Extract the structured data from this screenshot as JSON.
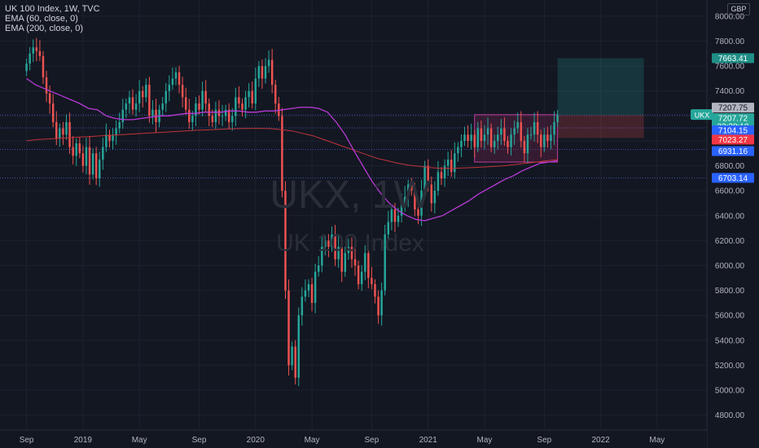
{
  "header": {
    "symbol_line": "UK 100 Index, 1W, TVC",
    "indicators": [
      "EMA (60, close, 0)",
      "EMA (200, close, 0)"
    ],
    "currency": "GBP"
  },
  "watermark": {
    "ticker": "UKX, 1W",
    "name": "UK 100 Index"
  },
  "colors": {
    "background": "#131722",
    "up": "#26a69a",
    "down": "#ef5350",
    "ema60": "#b83ad6",
    "ema200": "#c0343a",
    "grid": "#1e222d",
    "text": "#b2b5be"
  },
  "chart_data": {
    "type": "candlestick",
    "timeframe": "1W",
    "y_axis_ticks": [
      4800,
      5000,
      5200,
      5400,
      5600,
      5800,
      6000,
      6200,
      6400,
      6600,
      6800,
      7000,
      7200,
      7400,
      7600,
      7800,
      8000
    ],
    "y_axis_labels": [
      "4800.00",
      "5000.00",
      "5200.00",
      "5400.00",
      "5600.00",
      "5800.00",
      "6000.00",
      "6200.00",
      "6400.00",
      "6600.00",
      "6800.00",
      "7000.00",
      "7200.00",
      "7400.00",
      "7600.00",
      "7800.00",
      "8000.00"
    ],
    "ylim": [
      4680,
      8130
    ],
    "x_axis_labels": [
      "Sep",
      "2019",
      "May",
      "Sep",
      "2020",
      "May",
      "Sep",
      "2021",
      "May",
      "Sep",
      "2022",
      "May"
    ],
    "x_axis_positions": [
      0,
      17,
      34,
      52,
      69,
      86,
      104,
      121,
      138,
      156,
      173,
      190
    ],
    "xlim": [
      -8,
      205
    ],
    "price_labels": [
      {
        "value": "7663.41",
        "price": 7663.41,
        "bg": "#1f8e86",
        "fg": "#ffffff"
      },
      {
        "value": "7207.75",
        "price": 7207.75,
        "bg": "#b2b5be",
        "fg": "#131722"
      },
      {
        "value": "7207.72",
        "price": 7207.72,
        "bg": "#26a69a",
        "fg": "#ffffff",
        "sub": "22:20:10"
      },
      {
        "value": "7104.15",
        "price": 7104.15,
        "bg": "#2962ff",
        "fg": "#ffffff"
      },
      {
        "value": "7023.27",
        "price": 7023.27,
        "bg": "#f23645",
        "fg": "#ffffff"
      },
      {
        "value": "6931.16",
        "price": 6931.16,
        "bg": "#2962ff",
        "fg": "#ffffff"
      },
      {
        "value": "6703.14",
        "price": 6703.14,
        "bg": "#2962ff",
        "fg": "#ffffff"
      }
    ],
    "symbol_tag": "UKX",
    "horizontal_lines": [
      7207.75,
      7104.15,
      6931.16,
      6703.14
    ],
    "range_box": {
      "x0": 135,
      "x1": 160,
      "p0": 7210,
      "p1": 6830
    },
    "position_tool": {
      "x0": 160,
      "x1": 186,
      "entry": 7207.72,
      "target": 7663.41,
      "stop": 7023.27
    },
    "closes": [
      7620,
      7700,
      7750,
      7720,
      7680,
      7510,
      7380,
      7300,
      7150,
      7020,
      7100,
      7050,
      7150,
      6950,
      6880,
      6980,
      6900,
      6800,
      6950,
      6730,
      6900,
      6700,
      6850,
      6950,
      7050,
      7000,
      7050,
      7100,
      7150,
      7250,
      7300,
      7350,
      7250,
      7300,
      7400,
      7350,
      7450,
      7200,
      7250,
      7150,
      7250,
      7300,
      7400,
      7450,
      7500,
      7550,
      7450,
      7350,
      7250,
      7150,
      7200,
      7300,
      7250,
      7400,
      7300,
      7200,
      7150,
      7250,
      7200,
      7200,
      7250,
      7150,
      7200,
      7350,
      7300,
      7250,
      7350,
      7400,
      7300,
      7500,
      7600,
      7500,
      7600,
      7650,
      7450,
      7300,
      7200,
      6600,
      5800,
      5200,
      5350,
      5100,
      5600,
      5750,
      5800,
      5850,
      5700,
      5950,
      6000,
      6150,
      6200,
      6150,
      6250,
      6050,
      6150,
      5950,
      6100,
      6150,
      6050,
      6000,
      5850,
      5950,
      6100,
      5900,
      5850,
      5750,
      5600,
      5800,
      6250,
      6350,
      6450,
      6350,
      6400,
      6500,
      6550,
      6650,
      6600,
      6450,
      6400,
      6600,
      6800,
      6650,
      6500,
      6600,
      6750,
      6700,
      6800,
      6850,
      6750,
      6900,
      6950,
      7000,
      7050,
      7000,
      7050,
      6950,
      7100,
      7000,
      7050,
      7100,
      6950,
      7000,
      7050,
      7100,
      7000,
      6950,
      7050,
      7100,
      7150,
      7000,
      6900,
      7050,
      7050,
      7150,
      7050,
      6950,
      7050,
      7000,
      7050,
      7150,
      7207.72
    ],
    "ema60": [
      7500,
      7450,
      7420,
      7390,
      7360,
      7330,
      7300,
      7260,
      7250,
      7200,
      7180,
      7170,
      7170,
      7180,
      7190,
      7200,
      7200,
      7210,
      7220,
      7220,
      7230,
      7230,
      7230,
      7240,
      7240,
      7230,
      7230,
      7240,
      7240,
      7250,
      7260,
      7270,
      7270,
      7260,
      7230,
      7150,
      7050,
      6920,
      6800,
      6680,
      6580,
      6500,
      6440,
      6400,
      6370,
      6360,
      6380,
      6400,
      6440,
      6480,
      6520,
      6570,
      6610,
      6650,
      6690,
      6720,
      6760,
      6790,
      6820,
      6830,
      6840
    ],
    "ema200": [
      7000,
      7010,
      7015,
      7020,
      7025,
      7030,
      7035,
      7040,
      7045,
      7050,
      7055,
      7060,
      7065,
      7070,
      7075,
      7080,
      7085,
      7088,
      7092,
      7096,
      7098,
      7100,
      7100,
      7098,
      7090,
      7080,
      7060,
      7040,
      7010,
      6980,
      6950,
      6920,
      6890,
      6860,
      6840,
      6820,
      6805,
      6795,
      6785,
      6780,
      6780,
      6782,
      6785,
      6790,
      6795,
      6800,
      6810,
      6820,
      6830,
      6840,
      6850
    ]
  }
}
